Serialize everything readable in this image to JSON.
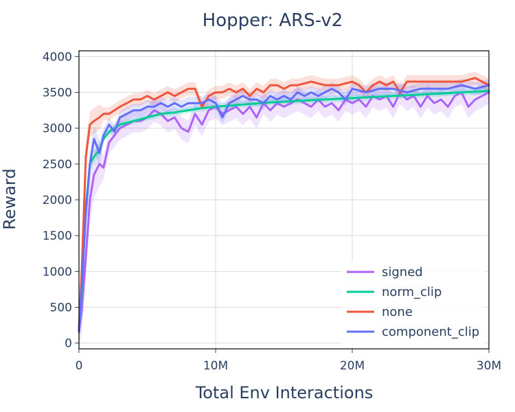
{
  "chart_data": {
    "type": "line",
    "title": "Hopper: ARS-v2",
    "xlabel": "Total Env Interactions",
    "ylabel": "Reward",
    "xlim": [
      0,
      30000000
    ],
    "ylim": [
      -80,
      4080
    ],
    "x_ticks": [
      0,
      10000000,
      20000000,
      30000000
    ],
    "x_tick_labels": [
      "0",
      "10M",
      "20M",
      "30M"
    ],
    "y_ticks": [
      0,
      500,
      1000,
      1500,
      2000,
      2500,
      3000,
      3500,
      4000
    ],
    "y_tick_labels": [
      "0",
      "500",
      "1000",
      "1500",
      "2000",
      "2500",
      "3000",
      "3500",
      "4000"
    ],
    "grid": true,
    "legend_position": "bottom-right",
    "series": [
      {
        "name": "signed",
        "color": "#ab63fa",
        "x": [
          0,
          200000,
          500000,
          800000,
          1100000,
          1500000,
          1800000,
          2200000,
          2600000,
          3000000,
          3500000,
          4000000,
          4500000,
          5000000,
          5500000,
          6000000,
          6500000,
          7000000,
          7500000,
          8000000,
          8500000,
          9000000,
          9500000,
          10000000,
          10500000,
          11000000,
          11500000,
          12000000,
          12500000,
          13000000,
          13500000,
          14000000,
          14500000,
          15000000,
          15500000,
          16000000,
          16500000,
          17000000,
          17500000,
          18000000,
          18500000,
          19000000,
          19500000,
          20000000,
          20500000,
          21000000,
          21500000,
          22000000,
          22500000,
          23000000,
          23500000,
          24000000,
          24500000,
          25000000,
          25500000,
          26000000,
          26500000,
          27000000,
          27500000,
          28000000,
          28500000,
          29000000,
          29500000,
          30000000
        ],
        "y": [
          150,
          450,
          1200,
          2000,
          2350,
          2500,
          2450,
          2800,
          2900,
          3000,
          3050,
          3100,
          3100,
          3150,
          3250,
          3200,
          3100,
          3150,
          3000,
          2950,
          3200,
          3050,
          3250,
          3300,
          3200,
          3250,
          3300,
          3200,
          3300,
          3150,
          3350,
          3250,
          3350,
          3300,
          3350,
          3400,
          3350,
          3300,
          3400,
          3300,
          3350,
          3250,
          3400,
          3350,
          3400,
          3300,
          3450,
          3400,
          3450,
          3300,
          3500,
          3400,
          3450,
          3300,
          3450,
          3350,
          3400,
          3300,
          3450,
          3500,
          3300,
          3400,
          3450,
          3500
        ]
      },
      {
        "name": "norm_clip",
        "color": "#00cc96",
        "x": [
          0,
          200000,
          500000,
          800000,
          1100000,
          1500000,
          1800000,
          2200000,
          2600000,
          3000000,
          4000000,
          5000000,
          6000000,
          7000000,
          8000000,
          9000000,
          10000000,
          12000000,
          14000000,
          16000000,
          18000000,
          20000000,
          22000000,
          24000000,
          26000000,
          28000000,
          30000000
        ],
        "y": [
          180,
          700,
          1900,
          2500,
          2600,
          2700,
          2850,
          2950,
          3000,
          3050,
          3100,
          3150,
          3200,
          3220,
          3250,
          3280,
          3300,
          3330,
          3360,
          3380,
          3400,
          3420,
          3440,
          3460,
          3480,
          3500,
          3520
        ]
      },
      {
        "name": "none",
        "color": "#ef553b",
        "x": [
          0,
          200000,
          500000,
          800000,
          1100000,
          1500000,
          1800000,
          2200000,
          2600000,
          3000000,
          3500000,
          4000000,
          4500000,
          5000000,
          5500000,
          6000000,
          6500000,
          7000000,
          7500000,
          8000000,
          8500000,
          9000000,
          9500000,
          10000000,
          10500000,
          11000000,
          11500000,
          12000000,
          12500000,
          13000000,
          13500000,
          14000000,
          14500000,
          15000000,
          15500000,
          16000000,
          17000000,
          18000000,
          19000000,
          20000000,
          20500000,
          21000000,
          21500000,
          22000000,
          22500000,
          23000000,
          23500000,
          24000000,
          25000000,
          26000000,
          27000000,
          28000000,
          29000000,
          29500000,
          30000000
        ],
        "y": [
          200,
          1000,
          2600,
          3050,
          3100,
          3150,
          3200,
          3200,
          3250,
          3300,
          3350,
          3400,
          3400,
          3450,
          3400,
          3450,
          3500,
          3450,
          3500,
          3550,
          3550,
          3300,
          3450,
          3500,
          3500,
          3550,
          3500,
          3550,
          3450,
          3550,
          3500,
          3600,
          3600,
          3550,
          3600,
          3600,
          3650,
          3600,
          3600,
          3650,
          3600,
          3500,
          3600,
          3650,
          3600,
          3650,
          3500,
          3650,
          3650,
          3650,
          3650,
          3650,
          3700,
          3650,
          3600
        ]
      },
      {
        "name": "component_clip",
        "color": "#636efa",
        "x": [
          0,
          200000,
          500000,
          800000,
          1100000,
          1500000,
          1800000,
          2200000,
          2600000,
          3000000,
          3500000,
          4000000,
          4500000,
          5000000,
          5500000,
          6000000,
          6500000,
          7000000,
          7500000,
          8000000,
          8500000,
          9000000,
          9500000,
          10000000,
          10500000,
          11000000,
          11500000,
          12000000,
          12500000,
          13000000,
          13500000,
          14000000,
          14500000,
          15000000,
          15500000,
          16000000,
          16500000,
          17000000,
          17500000,
          18000000,
          18500000,
          19000000,
          19500000,
          20000000,
          21000000,
          22000000,
          23000000,
          24000000,
          25000000,
          26000000,
          27000000,
          28000000,
          29000000,
          30000000
        ],
        "y": [
          170,
          800,
          1800,
          2500,
          2850,
          2650,
          2900,
          3050,
          2950,
          3150,
          3200,
          3250,
          3250,
          3300,
          3300,
          3350,
          3300,
          3350,
          3300,
          3350,
          3350,
          3350,
          3400,
          3350,
          3150,
          3350,
          3400,
          3450,
          3400,
          3400,
          3350,
          3450,
          3400,
          3450,
          3400,
          3500,
          3450,
          3500,
          3450,
          3500,
          3550,
          3500,
          3400,
          3550,
          3500,
          3550,
          3550,
          3500,
          3550,
          3550,
          3550,
          3600,
          3550,
          3600
        ]
      }
    ]
  }
}
